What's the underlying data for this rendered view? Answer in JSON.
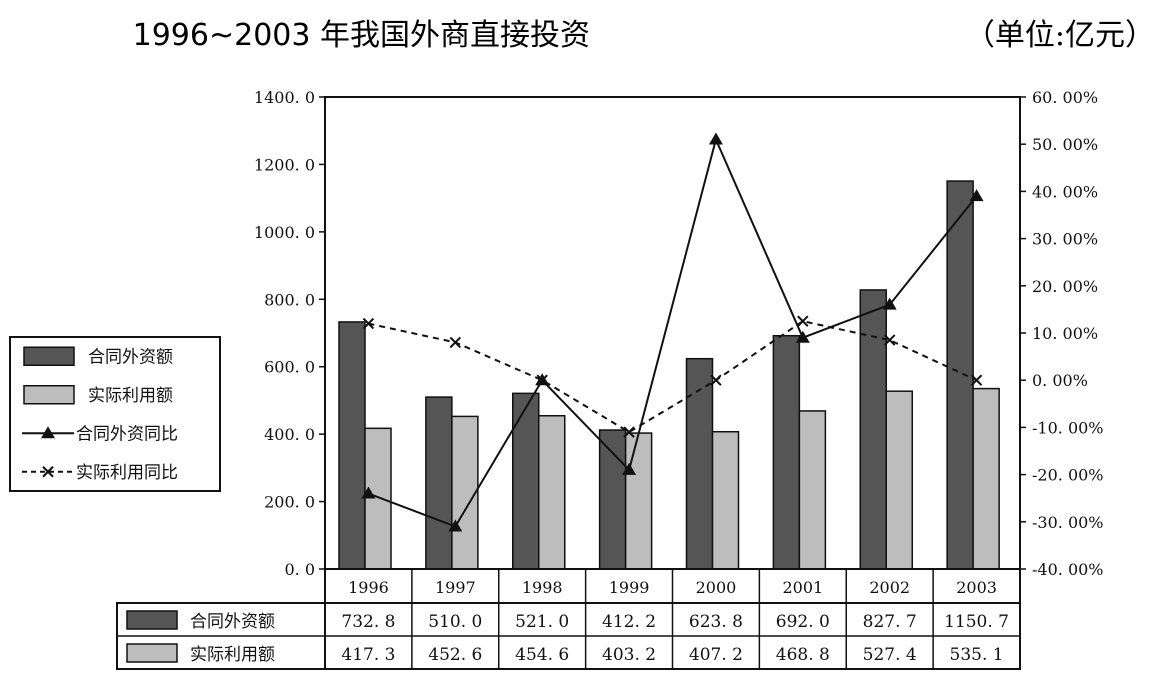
{
  "chart_data": {
    "type": "bar",
    "title": "1996~2003 年我国外商直接投资",
    "unit": "（单位:亿元）",
    "categories": [
      "1996",
      "1997",
      "1998",
      "1999",
      "2000",
      "2001",
      "2002",
      "2003"
    ],
    "series": [
      {
        "name": "合同外资额",
        "axis": "left",
        "kind": "bar",
        "color": "#555555",
        "values": [
          732.8,
          510.0,
          521.0,
          412.2,
          623.8,
          692.0,
          827.7,
          1150.7
        ],
        "labels": [
          "732. 8",
          "510. 0",
          "521. 0",
          "412. 2",
          "623. 8",
          "692. 0",
          "827. 7",
          "1150. 7"
        ]
      },
      {
        "name": "实际利用额",
        "axis": "left",
        "kind": "bar",
        "color": "#bdbdbd",
        "values": [
          417.3,
          452.6,
          454.6,
          403.2,
          407.2,
          468.8,
          527.4,
          535.1
        ],
        "labels": [
          "417. 3",
          "452. 6",
          "454. 6",
          "403. 2",
          "407. 2",
          "468. 8",
          "527. 4",
          "535. 1"
        ]
      },
      {
        "name": "合同外资同比",
        "axis": "right",
        "kind": "line",
        "marker": "triangle",
        "values": [
          -24.0,
          -31.0,
          0.0,
          -19.0,
          51.0,
          9.0,
          16.0,
          39.0
        ]
      },
      {
        "name": "实际利用同比",
        "axis": "right",
        "kind": "line",
        "marker": "x",
        "dashed": true,
        "values": [
          12.0,
          8.0,
          0.0,
          -11.0,
          0.0,
          12.5,
          8.5,
          0.0
        ]
      }
    ],
    "ylim_left": [
      0,
      1400
    ],
    "yticks_left": [
      "0. 0",
      "200. 0",
      "400. 0",
      "600. 0",
      "800. 0",
      "1000. 0",
      "1200. 0",
      "1400. 0"
    ],
    "ylim_right": [
      -40,
      60
    ],
    "yticks_right": [
      "-40. 00%",
      "-30. 00%",
      "-20. 00%",
      "-10. 00%",
      "0. 00%",
      "10. 00%",
      "20. 00%",
      "30. 00%",
      "40. 00%",
      "50. 00%",
      "60. 00%"
    ],
    "legend_position": "left",
    "data_table": true
  }
}
